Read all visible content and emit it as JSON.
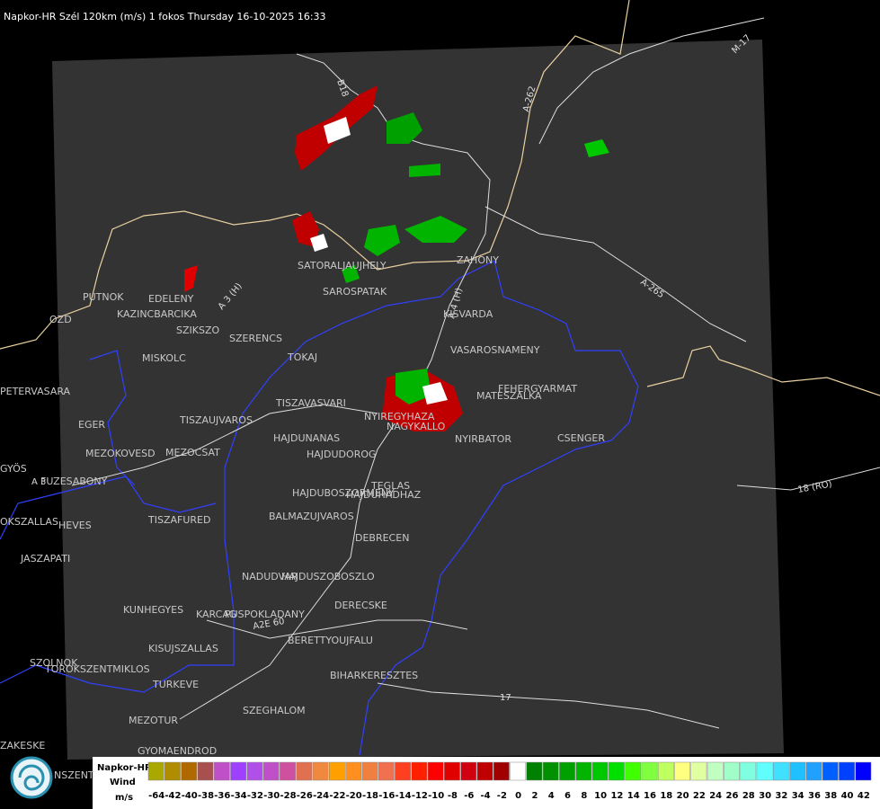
{
  "header": {
    "title": "Napkor-HR Szél 120km (m/s) 1 fokos Thursday 16-10-2025 16:33"
  },
  "map": {
    "places": [
      "SATORALJAUJHELY",
      "SAROSPATAK",
      "ZAHONY",
      "KISVARDA",
      "VASAROSNAMENY",
      "FEHERGYARMAT",
      "MATESZALKA",
      "CSENGER",
      "NYIRBATOR",
      "NAGYKALLO",
      "NYIREGYHAZA",
      "TISZAVASVARI",
      "TOKAJ",
      "SZERENCS",
      "SZIKSZO",
      "EDELENY",
      "KAZINCBARCIKA",
      "PUTNOK",
      "OZD",
      "MISKOLC",
      "PETERVASARA",
      "EGER",
      "TISZAUJVAROS",
      "HAJDUNANAS",
      "HAJDUDOROG",
      "MEZOKOVESD",
      "MEZOCSAT",
      "GYÖS",
      "FUZESABONY",
      "TEGLAS",
      "HAJDUBOSZORMENY",
      "HAJDUHADHAZ",
      "BALMAZUJVAROS",
      "OKSZALLAS",
      "HEVES",
      "TISZAFURED",
      "DEBRECEN",
      "JASZAPATI",
      "NADUDVAR",
      "HAJDUSZOBOSZLO",
      "DERECSKE",
      "KUNHEGYES",
      "KARCAG",
      "PUSPOKLADANY",
      "BERETTYOUJFALU",
      "KISUJSZALLAS",
      "SZOLNOK",
      "TOROKSZENTMIKLOS",
      "BIHARKERESZTES",
      "TURKEVE",
      "SZEGHALOM",
      "MEZOTUR",
      "ZAKESKE",
      "GYOMAENDROD",
      "NSZENT"
    ],
    "roads": [
      "B18",
      "A-262",
      "M-17",
      "A 3 (H)",
      "A-265",
      "18 (RO)",
      "17",
      "A2E 60",
      "A 3",
      "A 4 (H)"
    ]
  },
  "legend": {
    "title": "Napkor-HR",
    "subtitle": "Wind",
    "unit": "m/s",
    "values": [
      -64,
      -42,
      -40,
      -38,
      -36,
      -34,
      -32,
      -30,
      -28,
      -26,
      -24,
      -22,
      -20,
      -18,
      -16,
      -14,
      -12,
      -10,
      -8,
      -6,
      -4,
      -2,
      0,
      2,
      4,
      6,
      8,
      10,
      12,
      14,
      16,
      18,
      20,
      22,
      24,
      26,
      28,
      30,
      32,
      34,
      36,
      38,
      40,
      42
    ],
    "colors": [
      "#a8a800",
      "#b08c00",
      "#b06800",
      "#a85050",
      "#c050c8",
      "#a040ff",
      "#b050e8",
      "#c050c8",
      "#d050a0",
      "#e07050",
      "#f08840",
      "#ffa000",
      "#ff9020",
      "#f08040",
      "#f07050",
      "#ff4020",
      "#ff2000",
      "#ff0000",
      "#e00000",
      "#d00010",
      "#c00000",
      "#a00000",
      "#ffffff",
      "#008000",
      "#009000",
      "#00a000",
      "#00b400",
      "#00c800",
      "#00e000",
      "#40ff00",
      "#80ff40",
      "#c0ff60",
      "#ffff80",
      "#e0ffa0",
      "#c0ffc0",
      "#a0ffc8",
      "#80ffe0",
      "#60ffff",
      "#40e0ff",
      "#20c0ff",
      "#20a0ff",
      "#0060ff",
      "#0040ff",
      "#0000ff"
    ]
  }
}
